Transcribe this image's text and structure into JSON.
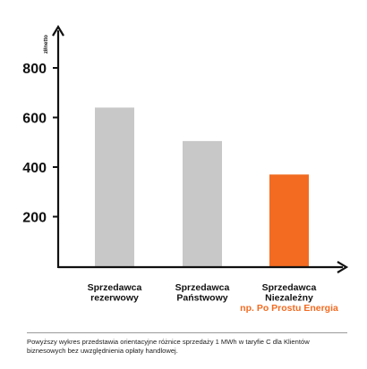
{
  "chart_data": {
    "type": "bar",
    "ylabel": "zł/netto",
    "ylim": [
      0,
      900
    ],
    "yticks": [
      200,
      400,
      600,
      800
    ],
    "categories": [
      [
        "Sprzedawca",
        "rezerwowy"
      ],
      [
        "Sprzedawca",
        "Państwowy"
      ],
      [
        "Sprzedawca",
        "Niezależny"
      ]
    ],
    "category_sublabels": [
      "",
      "",
      "np. Po Prostu Energia"
    ],
    "values": [
      640,
      505,
      370
    ],
    "bar_colors": [
      "#c8c8c8",
      "#c8c8c8",
      "#f26b21"
    ],
    "accent_color": "#f26b21",
    "grid": false,
    "legend": "none"
  },
  "footnote": "Powyższy wykres przedstawia orientacyjne różnice sprzedaży 1 MWh w taryfie C dla Klientów biznesowych bez uwzględnienia opłaty handlowej."
}
